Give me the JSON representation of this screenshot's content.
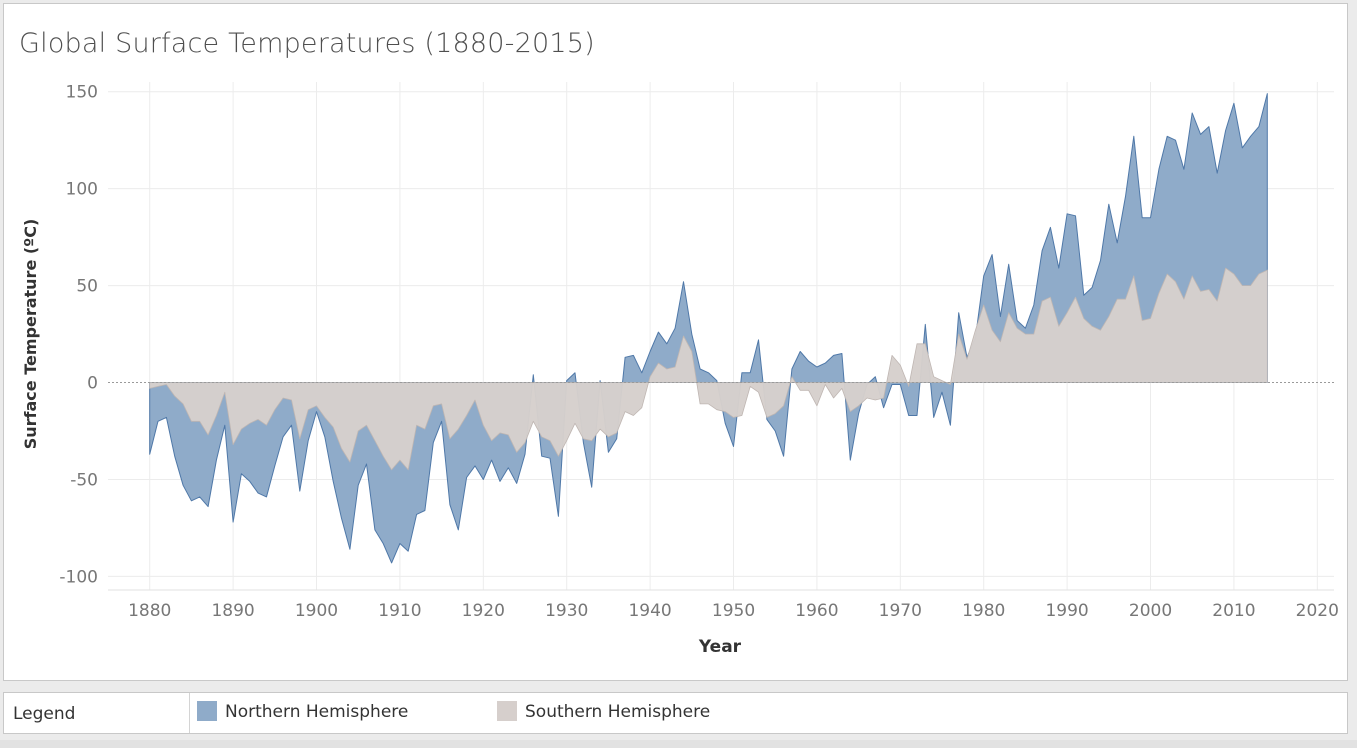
{
  "colors": {
    "north_fill": "#8fabc9",
    "north_stroke": "#4f78a8",
    "south_fill": "#d6cfcc",
    "south_stroke": "#bfb6b2",
    "grid": "#ececec",
    "zero_line": "#9a9a9a",
    "tick_text": "#777777",
    "axis_label": "#333333"
  },
  "chart_data": {
    "type": "area",
    "title": "Global Surface Temperatures (1880-2015)",
    "xlabel": "Year",
    "ylabel": "Surface Temperature (ºC)",
    "xlim": [
      1875,
      2022
    ],
    "ylim": [
      -107,
      155
    ],
    "xticks": [
      1880,
      1890,
      1900,
      1910,
      1920,
      1930,
      1940,
      1950,
      1960,
      1970,
      1980,
      1990,
      2000,
      2010,
      2020
    ],
    "yticks": [
      150,
      100,
      50,
      0,
      -50,
      -100
    ],
    "grid": true,
    "legend_position": "bottom",
    "series": [
      {
        "name": "Northern Hemisphere",
        "x": [
          1880,
          1881,
          1882,
          1883,
          1884,
          1885,
          1886,
          1887,
          1888,
          1889,
          1890,
          1891,
          1892,
          1893,
          1894,
          1895,
          1896,
          1897,
          1898,
          1899,
          1900,
          1901,
          1902,
          1903,
          1904,
          1905,
          1906,
          1907,
          1908,
          1909,
          1910,
          1911,
          1912,
          1913,
          1914,
          1915,
          1916,
          1917,
          1918,
          1919,
          1920,
          1921,
          1922,
          1923,
          1924,
          1925,
          1926,
          1927,
          1928,
          1929,
          1930,
          1931,
          1932,
          1933,
          1934,
          1935,
          1936,
          1937,
          1938,
          1939,
          1940,
          1941,
          1942,
          1943,
          1944,
          1945,
          1946,
          1947,
          1948,
          1949,
          1950,
          1951,
          1952,
          1953,
          1954,
          1955,
          1956,
          1957,
          1958,
          1959,
          1960,
          1961,
          1962,
          1963,
          1964,
          1965,
          1966,
          1967,
          1968,
          1969,
          1970,
          1971,
          1972,
          1973,
          1974,
          1975,
          1976,
          1977,
          1978,
          1979,
          1980,
          1981,
          1982,
          1983,
          1984,
          1985,
          1986,
          1987,
          1988,
          1989,
          1990,
          1991,
          1992,
          1993,
          1994,
          1995,
          1996,
          1997,
          1998,
          1999,
          2000,
          2001,
          2002,
          2003,
          2004,
          2005,
          2006,
          2007,
          2008,
          2009,
          2010,
          2011,
          2012,
          2013,
          2014
        ],
        "values": [
          -37,
          -20,
          -18,
          -38,
          -53,
          -61,
          -59,
          -64,
          -40,
          -22,
          -72,
          -47,
          -51,
          -57,
          -59,
          -43,
          -28,
          -22,
          -56,
          -30,
          -15,
          -28,
          -51,
          -70,
          -86,
          -53,
          -42,
          -76,
          -83,
          -93,
          -83,
          -87,
          -68,
          -66,
          -31,
          -20,
          -63,
          -76,
          -49,
          -43,
          -50,
          -40,
          -51,
          -44,
          -52,
          -37,
          4,
          -38,
          -39,
          -69,
          1,
          5,
          -31,
          -54,
          1,
          -36,
          -29,
          13,
          14,
          5,
          16,
          26,
          20,
          28,
          52,
          25,
          7,
          5,
          1,
          -21,
          -33,
          5,
          5,
          22,
          -19,
          -25,
          -38,
          7,
          16,
          11,
          8,
          10,
          14,
          15,
          -40,
          -16,
          -1,
          3,
          -13,
          -1,
          -1,
          -17,
          -17,
          30,
          -18,
          -5,
          -22,
          36,
          13,
          23,
          55,
          66,
          34,
          61,
          32,
          28,
          40,
          68,
          80,
          59,
          87,
          86,
          45,
          49,
          63,
          92,
          72,
          96,
          127,
          85,
          85,
          110,
          127,
          125,
          110,
          139,
          128,
          132,
          108,
          130,
          144,
          121,
          127,
          132,
          149
        ]
      },
      {
        "name": "Southern Hemisphere",
        "x": [
          1880,
          1881,
          1882,
          1883,
          1884,
          1885,
          1886,
          1887,
          1888,
          1889,
          1890,
          1891,
          1892,
          1893,
          1894,
          1895,
          1896,
          1897,
          1898,
          1899,
          1900,
          1901,
          1902,
          1903,
          1904,
          1905,
          1906,
          1907,
          1908,
          1909,
          1910,
          1911,
          1912,
          1913,
          1914,
          1915,
          1916,
          1917,
          1918,
          1919,
          1920,
          1921,
          1922,
          1923,
          1924,
          1925,
          1926,
          1927,
          1928,
          1929,
          1930,
          1931,
          1932,
          1933,
          1934,
          1935,
          1936,
          1937,
          1938,
          1939,
          1940,
          1941,
          1942,
          1943,
          1944,
          1945,
          1946,
          1947,
          1948,
          1949,
          1950,
          1951,
          1952,
          1953,
          1954,
          1955,
          1956,
          1957,
          1958,
          1959,
          1960,
          1961,
          1962,
          1963,
          1964,
          1965,
          1966,
          1967,
          1968,
          1969,
          1970,
          1971,
          1972,
          1973,
          1974,
          1975,
          1976,
          1977,
          1978,
          1979,
          1980,
          1981,
          1982,
          1983,
          1984,
          1985,
          1986,
          1987,
          1988,
          1989,
          1990,
          1991,
          1992,
          1993,
          1994,
          1995,
          1996,
          1997,
          1998,
          1999,
          2000,
          2001,
          2002,
          2003,
          2004,
          2005,
          2006,
          2007,
          2008,
          2009,
          2010,
          2011,
          2012,
          2013,
          2014
        ],
        "values": [
          -3,
          -2,
          -1,
          -7,
          -11,
          -20,
          -20,
          -27,
          -17,
          -5,
          -32,
          -24,
          -21,
          -19,
          -22,
          -14,
          -8,
          -9,
          -29,
          -14,
          -12,
          -18,
          -23,
          -34,
          -41,
          -25,
          -22,
          -30,
          -38,
          -45,
          -40,
          -45,
          -22,
          -24,
          -12,
          -11,
          -29,
          -24,
          -17,
          -9,
          -22,
          -30,
          -26,
          -27,
          -36,
          -31,
          -20,
          -28,
          -30,
          -38,
          -30,
          -21,
          -29,
          -30,
          -24,
          -28,
          -26,
          -15,
          -17,
          -13,
          3,
          10,
          7,
          8,
          24,
          16,
          -11,
          -11,
          -14,
          -15,
          -18,
          -17,
          -2,
          -5,
          -18,
          -16,
          -12,
          3,
          -4,
          -4,
          -12,
          -1,
          -8,
          -3,
          -15,
          -12,
          -8,
          -9,
          -8,
          14,
          9,
          -2,
          20,
          20,
          3,
          1,
          -1,
          25,
          12,
          27,
          40,
          27,
          21,
          36,
          28,
          25,
          25,
          42,
          44,
          29,
          36,
          44,
          33,
          29,
          27,
          34,
          43,
          43,
          55,
          32,
          33,
          46,
          56,
          52,
          43,
          55,
          47,
          48,
          42,
          59,
          56,
          50,
          50,
          56,
          58
        ]
      }
    ]
  },
  "legend": {
    "title": "Legend",
    "items": [
      "Northern Hemisphere",
      "Southern Hemisphere"
    ]
  }
}
